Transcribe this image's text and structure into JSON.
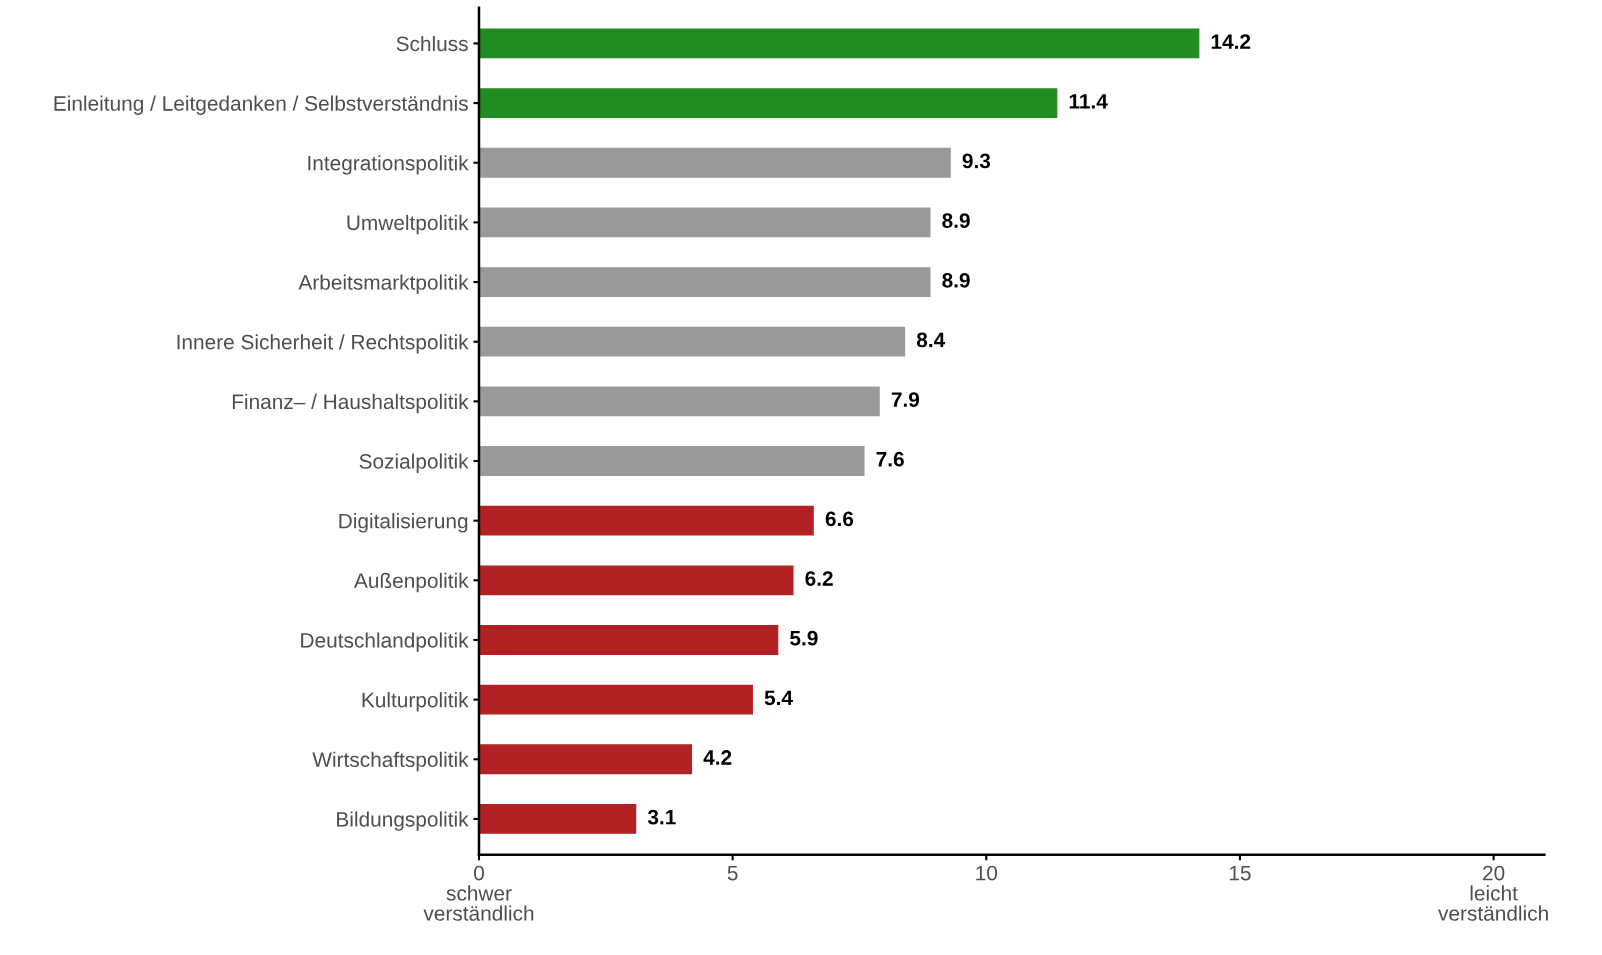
{
  "chart_data": {
    "type": "bar",
    "orientation": "horizontal",
    "categories": [
      "Schluss",
      "Einleitung / Leitgedanken / Selbstverständnis",
      "Integrationspolitik",
      "Umweltpolitik",
      "Arbeitsmarktpolitik",
      "Innere Sicherheit / Rechtspolitik",
      "Finanz– / Haushaltspolitik",
      "Sozialpolitik",
      "Digitalisierung",
      "Außenpolitik",
      "Deutschlandpolitik",
      "Kulturpolitik",
      "Wirtschaftspolitik",
      "Bildungspolitik"
    ],
    "values": [
      14.2,
      11.4,
      9.3,
      8.9,
      8.9,
      8.4,
      7.9,
      7.6,
      6.6,
      6.2,
      5.9,
      5.4,
      4.2,
      3.1
    ],
    "colors": [
      "#228b22",
      "#228b22",
      "#999999",
      "#999999",
      "#999999",
      "#999999",
      "#999999",
      "#999999",
      "#b22222",
      "#b22222",
      "#b22222",
      "#b22222",
      "#b22222",
      "#b22222"
    ],
    "xlim": [
      0,
      21
    ],
    "xticks": [
      {
        "value": 0,
        "label": "0\nschwer\nverständlich"
      },
      5,
      10,
      15,
      {
        "value": 20,
        "label": "20\nleicht\nverständlich"
      }
    ],
    "data_labels": true,
    "grid": false,
    "legend": false
  }
}
